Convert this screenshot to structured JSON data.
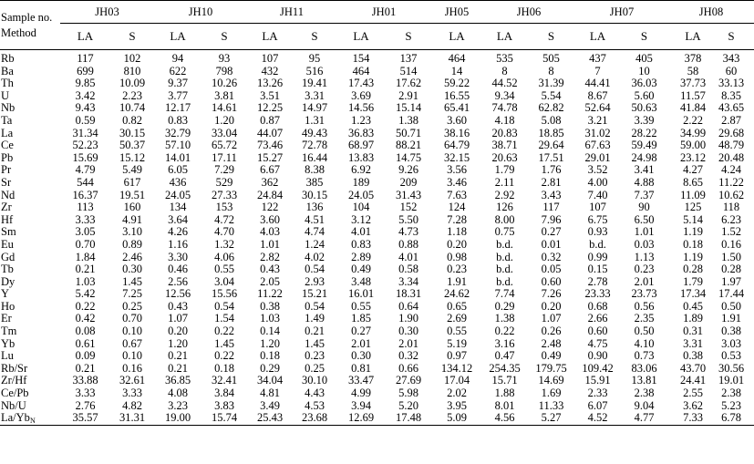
{
  "corner": {
    "line1": "Sample no.",
    "line2": "Method"
  },
  "groups": [
    {
      "name": "JH03",
      "cols": 2
    },
    {
      "name": "JH10",
      "cols": 2
    },
    {
      "name": "JH11",
      "cols": 2
    },
    {
      "name": "JH01",
      "cols": 2
    },
    {
      "name": "JH05",
      "cols": 1
    },
    {
      "name": "JH06",
      "cols": 2
    },
    {
      "name": "JH07",
      "cols": 2
    },
    {
      "name": "JH08",
      "cols": 2
    }
  ],
  "methods": [
    "LA",
    "S",
    "LA",
    "S",
    "LA",
    "S",
    "LA",
    "S",
    "LA",
    "LA",
    "S",
    "LA",
    "S",
    "LA",
    "S"
  ],
  "rows": [
    {
      "label": "Rb",
      "values": [
        "117",
        "102",
        "94",
        "93",
        "107",
        "95",
        "154",
        "137",
        "464",
        "535",
        "505",
        "437",
        "405",
        "378",
        "343"
      ]
    },
    {
      "label": "Ba",
      "values": [
        "699",
        "810",
        "622",
        "798",
        "432",
        "516",
        "464",
        "514",
        "14",
        "8",
        "8",
        "7",
        "10",
        "58",
        "60"
      ]
    },
    {
      "label": "Th",
      "values": [
        "9.85",
        "10.09",
        "9.37",
        "10.26",
        "13.26",
        "19.41",
        "17.43",
        "17.62",
        "59.22",
        "44.52",
        "31.39",
        "44.41",
        "36.03",
        "37.73",
        "33.13"
      ]
    },
    {
      "label": "U",
      "values": [
        "3.42",
        "2.23",
        "3.77",
        "3.81",
        "3.51",
        "3.31",
        "3.69",
        "2.91",
        "16.55",
        "9.34",
        "5.54",
        "8.67",
        "5.60",
        "11.57",
        "8.35"
      ]
    },
    {
      "label": "Nb",
      "values": [
        "9.43",
        "10.74",
        "12.17",
        "14.61",
        "12.25",
        "14.97",
        "14.56",
        "15.14",
        "65.41",
        "74.78",
        "62.82",
        "52.64",
        "50.63",
        "41.84",
        "43.65"
      ]
    },
    {
      "label": "Ta",
      "values": [
        "0.59",
        "0.82",
        "0.83",
        "1.20",
        "0.87",
        "1.31",
        "1.23",
        "1.38",
        "3.60",
        "4.18",
        "5.08",
        "3.21",
        "3.39",
        "2.22",
        "2.87"
      ]
    },
    {
      "label": "La",
      "values": [
        "31.34",
        "30.15",
        "32.79",
        "33.04",
        "44.07",
        "49.43",
        "36.83",
        "50.71",
        "38.16",
        "20.83",
        "18.85",
        "31.02",
        "28.22",
        "34.99",
        "29.68"
      ]
    },
    {
      "label": "Ce",
      "values": [
        "52.23",
        "50.37",
        "57.10",
        "65.72",
        "73.46",
        "72.78",
        "68.97",
        "88.21",
        "64.79",
        "38.71",
        "29.64",
        "67.63",
        "59.49",
        "59.00",
        "48.79"
      ]
    },
    {
      "label": "Pb",
      "values": [
        "15.69",
        "15.12",
        "14.01",
        "17.11",
        "15.27",
        "16.44",
        "13.83",
        "14.75",
        "32.15",
        "20.63",
        "17.51",
        "29.01",
        "24.98",
        "23.12",
        "20.48"
      ]
    },
    {
      "label": "Pr",
      "values": [
        "4.79",
        "5.49",
        "6.05",
        "7.29",
        "6.67",
        "8.38",
        "6.92",
        "9.26",
        "3.56",
        "1.79",
        "1.76",
        "3.52",
        "3.41",
        "4.27",
        "4.24"
      ]
    },
    {
      "label": "Sr",
      "values": [
        "544",
        "617",
        "436",
        "529",
        "362",
        "385",
        "189",
        "209",
        "3.46",
        "2.11",
        "2.81",
        "4.00",
        "4.88",
        "8.65",
        "11.22"
      ]
    },
    {
      "label": "Nd",
      "values": [
        "16.37",
        "19.51",
        "24.05",
        "27.33",
        "24.84",
        "30.15",
        "24.05",
        "31.43",
        "7.63",
        "2.92",
        "3.43",
        "7.40",
        "7.37",
        "11.09",
        "10.62"
      ]
    },
    {
      "label": "Zr",
      "values": [
        "113",
        "160",
        "134",
        "153",
        "122",
        "136",
        "104",
        "152",
        "124",
        "126",
        "117",
        "107",
        "90",
        "125",
        "118"
      ]
    },
    {
      "label": "Hf",
      "values": [
        "3.33",
        "4.91",
        "3.64",
        "4.72",
        "3.60",
        "4.51",
        "3.12",
        "5.50",
        "7.28",
        "8.00",
        "7.96",
        "6.75",
        "6.50",
        "5.14",
        "6.23"
      ]
    },
    {
      "label": "Sm",
      "values": [
        "3.05",
        "3.10",
        "4.26",
        "4.70",
        "4.03",
        "4.74",
        "4.01",
        "4.73",
        "1.18",
        "0.75",
        "0.27",
        "0.93",
        "1.01",
        "1.19",
        "1.52"
      ]
    },
    {
      "label": "Eu",
      "values": [
        "0.70",
        "0.89",
        "1.16",
        "1.32",
        "1.01",
        "1.24",
        "0.83",
        "0.88",
        "0.20",
        "b.d.",
        "0.01",
        "b.d.",
        "0.03",
        "0.18",
        "0.16"
      ]
    },
    {
      "label": "Gd",
      "values": [
        "1.84",
        "2.46",
        "3.30",
        "4.06",
        "2.82",
        "4.02",
        "2.89",
        "4.01",
        "0.98",
        "b.d.",
        "0.32",
        "0.99",
        "1.13",
        "1.19",
        "1.50"
      ]
    },
    {
      "label": "Tb",
      "values": [
        "0.21",
        "0.30",
        "0.46",
        "0.55",
        "0.43",
        "0.54",
        "0.49",
        "0.58",
        "0.23",
        "b.d.",
        "0.05",
        "0.15",
        "0.23",
        "0.28",
        "0.28"
      ]
    },
    {
      "label": "Dy",
      "values": [
        "1.03",
        "1.45",
        "2.56",
        "3.04",
        "2.05",
        "2.93",
        "3.48",
        "3.34",
        "1.91",
        "b.d.",
        "0.60",
        "2.78",
        "2.01",
        "1.79",
        "1.97"
      ]
    },
    {
      "label": "Y",
      "values": [
        "5.42",
        "7.25",
        "12.56",
        "15.56",
        "11.22",
        "15.21",
        "16.01",
        "18.31",
        "24.62",
        "7.74",
        "7.26",
        "23.33",
        "23.73",
        "17.34",
        "17.44"
      ]
    },
    {
      "label": "Ho",
      "values": [
        "0.22",
        "0.25",
        "0.43",
        "0.54",
        "0.38",
        "0.54",
        "0.55",
        "0.64",
        "0.65",
        "0.29",
        "0.20",
        "0.68",
        "0.56",
        "0.45",
        "0.50"
      ]
    },
    {
      "label": "Er",
      "values": [
        "0.42",
        "0.70",
        "1.07",
        "1.54",
        "1.03",
        "1.49",
        "1.85",
        "1.90",
        "2.69",
        "1.38",
        "1.07",
        "2.66",
        "2.35",
        "1.89",
        "1.91"
      ]
    },
    {
      "label": "Tm",
      "values": [
        "0.08",
        "0.10",
        "0.20",
        "0.22",
        "0.14",
        "0.21",
        "0.27",
        "0.30",
        "0.55",
        "0.22",
        "0.26",
        "0.60",
        "0.50",
        "0.31",
        "0.38"
      ]
    },
    {
      "label": "Yb",
      "values": [
        "0.61",
        "0.67",
        "1.20",
        "1.45",
        "1.20",
        "1.45",
        "2.01",
        "2.01",
        "5.19",
        "3.16",
        "2.48",
        "4.75",
        "4.10",
        "3.31",
        "3.03"
      ]
    },
    {
      "label": "Lu",
      "values": [
        "0.09",
        "0.10",
        "0.21",
        "0.22",
        "0.18",
        "0.23",
        "0.30",
        "0.32",
        "0.97",
        "0.47",
        "0.49",
        "0.90",
        "0.73",
        "0.38",
        "0.53"
      ]
    },
    {
      "label": "Rb/Sr",
      "values": [
        "0.21",
        "0.16",
        "0.21",
        "0.18",
        "0.29",
        "0.25",
        "0.81",
        "0.66",
        "134.12",
        "254.35",
        "179.75",
        "109.42",
        "83.06",
        "43.70",
        "30.56"
      ]
    },
    {
      "label": "Zr/Hf",
      "values": [
        "33.88",
        "32.61",
        "36.85",
        "32.41",
        "34.04",
        "30.10",
        "33.47",
        "27.69",
        "17.04",
        "15.71",
        "14.69",
        "15.91",
        "13.81",
        "24.41",
        "19.01"
      ]
    },
    {
      "label": "Ce/Pb",
      "values": [
        "3.33",
        "3.33",
        "4.08",
        "3.84",
        "4.81",
        "4.43",
        "4.99",
        "5.98",
        "2.02",
        "1.88",
        "1.69",
        "2.33",
        "2.38",
        "2.55",
        "2.38"
      ]
    },
    {
      "label": "Nb/U",
      "values": [
        "2.76",
        "4.82",
        "3.23",
        "3.83",
        "3.49",
        "4.53",
        "3.94",
        "5.20",
        "3.95",
        "8.01",
        "11.33",
        "6.07",
        "9.04",
        "3.62",
        "5.23"
      ]
    },
    {
      "label": "La/Yb",
      "label_sub": "N",
      "values": [
        "35.57",
        "31.31",
        "19.00",
        "15.74",
        "25.43",
        "23.68",
        "12.69",
        "17.48",
        "5.09",
        "4.56",
        "5.27",
        "4.52",
        "4.77",
        "7.33",
        "6.78"
      ]
    }
  ]
}
